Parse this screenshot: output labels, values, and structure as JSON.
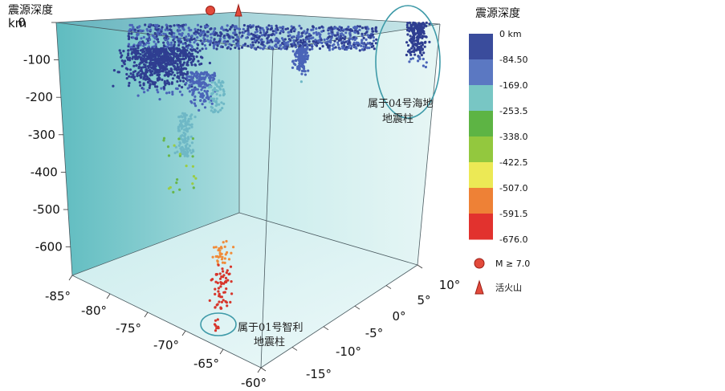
{
  "chart_data": {
    "type": "scatter",
    "title": "",
    "depth_axis": {
      "header": "震源深度",
      "unit": "km",
      "ticks": [
        "0",
        "-100",
        "-200",
        "-300",
        "-400",
        "-500",
        "-600"
      ],
      "range": [
        -676,
        0
      ]
    },
    "longitude_axis": {
      "ticks": [
        "-85°",
        "-80°",
        "-75°",
        "-70°",
        "-65°",
        "-60°"
      ],
      "range": [
        -85,
        -60
      ]
    },
    "latitude_axis": {
      "ticks": [
        "10°",
        "5°",
        "0°",
        "-5°",
        "-10°",
        "-15°"
      ],
      "range": [
        -15,
        10
      ]
    },
    "colorbar": {
      "title": "震源深度",
      "labels": [
        "0   km",
        "-84.50",
        "-169.0",
        "-253.5",
        "-338.0",
        "-422.5",
        "-507.0",
        "-591.5",
        "-676.0"
      ],
      "colors": [
        "#3a4c9c",
        "#5b78c2",
        "#78c6c4",
        "#5db444",
        "#93c83e",
        "#ece955",
        "#ee8136",
        "#e2322e"
      ]
    },
    "legend": [
      {
        "symbol": "circle",
        "label": "M ≥ 7.0",
        "color": "#e24a3b"
      },
      {
        "symbol": "triangle",
        "label": "活火山",
        "color": "#e24a3b"
      }
    ],
    "annotations": [
      {
        "lines": [
          "属于04号海地",
          "地震柱"
        ],
        "target": "upper-right cluster"
      },
      {
        "lines": [
          "属于01号智利",
          "地震柱"
        ],
        "target": "deep cluster"
      }
    ]
  }
}
